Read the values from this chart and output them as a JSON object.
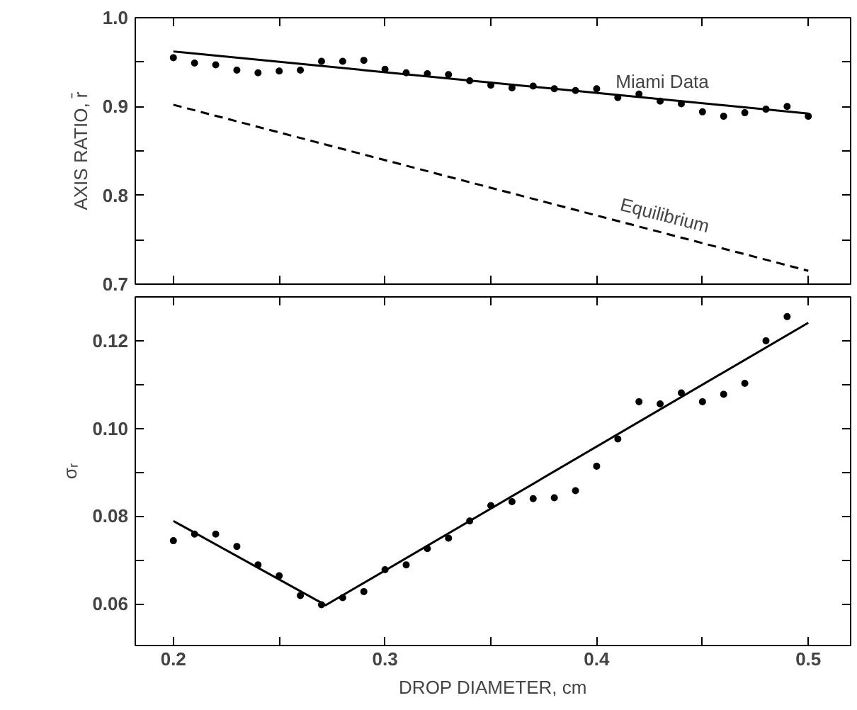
{
  "chart_data": [
    {
      "type": "line",
      "ylabel": "AXIS RATIO, r̄",
      "xlim": [
        0.182,
        0.52
      ],
      "ylim": [
        0.7,
        1.0
      ],
      "xticks": [
        0.2,
        {
          "value": 0.25,
          "label": null
        },
        0.3,
        {
          "value": 0.35,
          "label": null
        },
        0.4,
        {
          "value": 0.45,
          "label": null
        },
        0.5
      ],
      "yticks": [
        0.7,
        {
          "value": 0.75,
          "label": null
        },
        0.8,
        {
          "value": 0.85,
          "label": null
        },
        0.9,
        {
          "value": 0.95,
          "label": null
        },
        {
          "value": 1.0,
          "label": "1.0"
        }
      ],
      "tick_labels": "y",
      "series": [
        {
          "type": "scatter",
          "marker": "circle",
          "color": "#000000",
          "x": [
            0.2,
            0.21,
            0.22,
            0.23,
            0.24,
            0.25,
            0.26,
            0.27,
            0.28,
            0.29,
            0.3,
            0.31,
            0.32,
            0.33,
            0.34,
            0.35,
            0.36,
            0.37,
            0.38,
            0.39,
            0.4,
            0.41,
            0.42,
            0.43,
            0.44,
            0.45,
            0.46,
            0.47,
            0.48,
            0.49,
            0.5
          ],
          "values": [
            0.955,
            0.949,
            0.947,
            0.941,
            0.938,
            0.94,
            0.941,
            0.951,
            0.951,
            0.952,
            0.942,
            0.938,
            0.937,
            0.936,
            0.929,
            0.924,
            0.921,
            0.923,
            0.92,
            0.918,
            0.92,
            0.91,
            0.914,
            0.906,
            0.903,
            0.894,
            0.889,
            0.893,
            0.897,
            0.9,
            0.889
          ]
        },
        {
          "name": "Miami Data",
          "line_style": "solid",
          "color": "#000000",
          "x": [
            0.2,
            0.5
          ],
          "values": [
            0.962,
            0.892
          ]
        },
        {
          "name": "Equilibrium",
          "line_style": "dashed",
          "color": "#000000",
          "x": [
            0.2,
            0.5
          ],
          "values": [
            0.902,
            0.715
          ]
        }
      ]
    },
    {
      "type": "line",
      "xlabel": "DROP DIAMETER, cm",
      "ylabel": "σᵣ",
      "xlim": [
        0.182,
        0.52
      ],
      "ylim": [
        0.0505,
        0.13
      ],
      "xticks": [
        0.2,
        {
          "value": 0.25,
          "label": null
        },
        0.3,
        {
          "value": 0.35,
          "label": null
        },
        0.4,
        {
          "value": 0.45,
          "label": null
        },
        0.5
      ],
      "yticks": [
        0.06,
        {
          "value": 0.07,
          "label": null
        },
        0.08,
        {
          "value": 0.09,
          "label": null
        },
        {
          "value": 0.1,
          "label": "0.10"
        },
        {
          "value": 0.11,
          "label": null
        },
        0.12
      ],
      "series": [
        {
          "type": "scatter",
          "marker": "circle",
          "color": "#000000",
          "x": [
            0.2,
            0.21,
            0.22,
            0.23,
            0.24,
            0.25,
            0.26,
            0.27,
            0.28,
            0.29,
            0.3,
            0.31,
            0.32,
            0.33,
            0.34,
            0.35,
            0.36,
            0.37,
            0.38,
            0.39,
            0.4,
            0.41,
            0.42,
            0.43,
            0.44,
            0.45,
            0.46,
            0.47,
            0.48,
            0.49
          ],
          "values": [
            0.0744,
            0.0759,
            0.0759,
            0.0731,
            0.0689,
            0.0664,
            0.0619,
            0.0598,
            0.0614,
            0.0628,
            0.0678,
            0.0689,
            0.0726,
            0.075,
            0.0789,
            0.0824,
            0.0833,
            0.084,
            0.0842,
            0.0858,
            0.0914,
            0.0976,
            0.1061,
            0.1056,
            0.1081,
            0.1061,
            0.1078,
            0.1103,
            0.12,
            0.1255
          ]
        },
        {
          "line_style": "solid",
          "color": "#000000",
          "x": [
            0.2,
            0.272,
            0.5
          ],
          "values": [
            0.0789,
            0.0597,
            0.1241
          ]
        }
      ]
    }
  ]
}
